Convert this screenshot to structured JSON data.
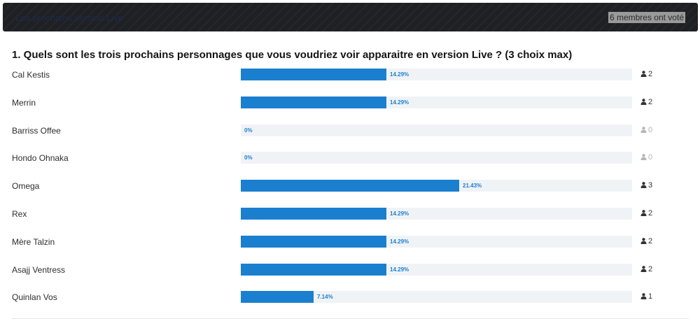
{
  "header": {
    "title": "Les prochains version Live",
    "voters": "6 membres ont voté"
  },
  "question": {
    "title": "1. Quels sont les trois prochains personnages que vous voudriez voir apparaitre en version Live ? (3 choix max)"
  },
  "options": [
    {
      "label": "Cal Kestis",
      "percent_label": "14.29%",
      "percent": 14.29,
      "votes": "2"
    },
    {
      "label": "Merrin",
      "percent_label": "14.29%",
      "percent": 14.29,
      "votes": "2"
    },
    {
      "label": "Barriss Offee",
      "percent_label": "0%",
      "percent": 0,
      "votes": "0"
    },
    {
      "label": "Hondo Ohnaka",
      "percent_label": "0%",
      "percent": 0,
      "votes": "0"
    },
    {
      "label": "Omega",
      "percent_label": "21.43%",
      "percent": 21.43,
      "votes": "3"
    },
    {
      "label": "Rex",
      "percent_label": "14.29%",
      "percent": 14.29,
      "votes": "2"
    },
    {
      "label": "Mère Talzin",
      "percent_label": "14.29%",
      "percent": 14.29,
      "votes": "2"
    },
    {
      "label": "Asajj Ventress",
      "percent_label": "14.29%",
      "percent": 14.29,
      "votes": "2"
    },
    {
      "label": "Quinlan Vos",
      "percent_label": "7.14%",
      "percent": 7.14,
      "votes": "1"
    }
  ],
  "colors": {
    "bar_fill": "#1b7fcf",
    "bar_track": "#f0f3f6",
    "header_bg": "#1e2024"
  },
  "icons": {
    "voter": "user-icon"
  }
}
